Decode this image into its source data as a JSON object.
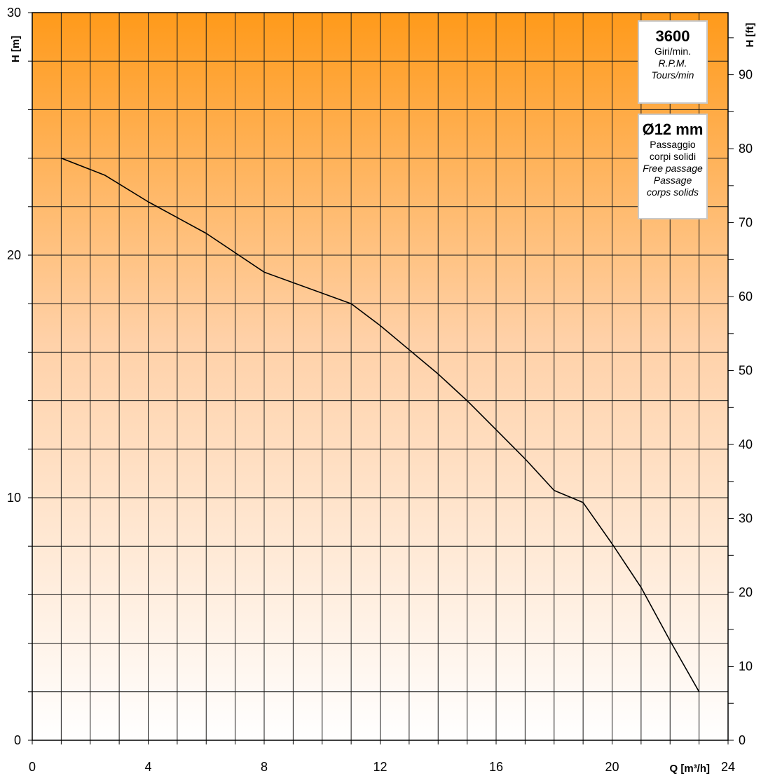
{
  "chart_data": {
    "type": "line",
    "xlabel": "Q [m³/h]",
    "ylabel": "H [m]",
    "y2label": "H [ft]",
    "xlim": [
      0,
      24
    ],
    "ylim": [
      0,
      30
    ],
    "y2lim_ft": [
      0,
      98.4
    ],
    "x_ticks": [
      0,
      4,
      8,
      12,
      16,
      20,
      24
    ],
    "y_ticks": [
      0,
      10,
      20,
      30
    ],
    "y2_ticks": [
      0,
      10,
      20,
      30,
      40,
      50,
      60,
      70,
      80,
      90
    ],
    "grid": true,
    "background_gradient": [
      "#ff9a1a",
      "#ffffff"
    ],
    "series": [
      {
        "x": [
          1,
          2.5,
          4,
          6,
          8,
          11,
          12,
          13,
          14,
          15,
          16,
          17,
          18,
          19,
          20,
          20.5,
          21,
          22,
          23
        ],
        "y": [
          24,
          23.3,
          22.2,
          20.9,
          19.3,
          18,
          17.1,
          16.1,
          15.1,
          14.0,
          12.8,
          11.6,
          10.3,
          9.8,
          8.1,
          7.2,
          6.3,
          4.1,
          2.0
        ]
      }
    ]
  },
  "info_rpm": {
    "value": "3600",
    "lines": [
      "Giri/min.",
      "R.P.M.",
      "Tours/min"
    ]
  },
  "info_passage": {
    "value": "Ø12 mm",
    "lines": [
      "Passaggio",
      "corpi solidi",
      "Free passage",
      "Passage",
      "corps solids"
    ]
  }
}
